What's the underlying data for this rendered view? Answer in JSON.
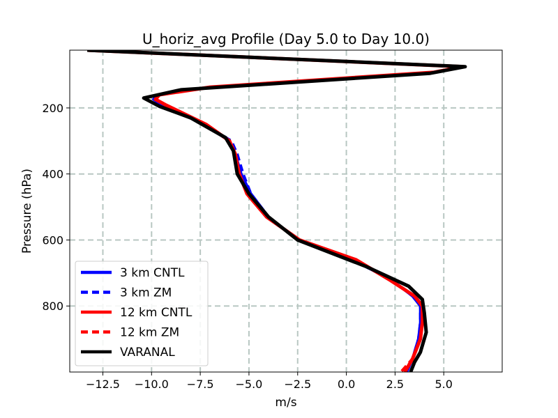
{
  "chart_data": {
    "type": "line",
    "title": "U_horiz_avg Profile (Day 5.0 to Day 10.0)",
    "xlabel": "m/s",
    "ylabel": "Pressure (hPa)",
    "xlim": [
      -14.2,
      8.0
    ],
    "ylim": [
      1000,
      25
    ],
    "y_inverted": true,
    "grid": true,
    "legend_position": "lower-left",
    "xticks": [
      -12.5,
      -10.0,
      -7.5,
      -5.0,
      -2.5,
      0.0,
      2.5,
      5.0
    ],
    "xtick_labels": [
      "−12.5",
      "−10.0",
      "−7.5",
      "−5.0",
      "−2.5",
      "0.0",
      "2.5",
      "5.0"
    ],
    "yticks": [
      200,
      400,
      600,
      800
    ],
    "ytick_labels": [
      "200",
      "400",
      "600",
      "800"
    ],
    "series": [
      {
        "name": "3 km CNTL",
        "color": "#0000ff",
        "dash": "solid",
        "points": [
          [
            -13.3,
            25
          ],
          [
            6.0,
            75
          ],
          [
            4.5,
            92
          ],
          [
            -7.0,
            137
          ],
          [
            -9.7,
            160
          ],
          [
            -9.9,
            174
          ],
          [
            -9.5,
            190
          ],
          [
            -7.3,
            250
          ],
          [
            -6.0,
            300
          ],
          [
            -5.7,
            340
          ],
          [
            -5.4,
            400
          ],
          [
            -4.9,
            460
          ],
          [
            -4.0,
            530
          ],
          [
            -2.5,
            600
          ],
          [
            0.3,
            660
          ],
          [
            2.3,
            720
          ],
          [
            3.4,
            770
          ],
          [
            3.8,
            800
          ],
          [
            3.8,
            850
          ],
          [
            3.7,
            900
          ],
          [
            3.4,
            960
          ],
          [
            3.1,
            1000
          ]
        ]
      },
      {
        "name": "3 km ZM",
        "color": "#0000ff",
        "dash": "dashed",
        "points": [
          [
            -13.3,
            25
          ],
          [
            6.0,
            75
          ],
          [
            4.5,
            92
          ],
          [
            -7.0,
            137
          ],
          [
            -9.7,
            160
          ],
          [
            -9.9,
            174
          ],
          [
            -9.5,
            190
          ],
          [
            -7.3,
            250
          ],
          [
            -5.9,
            300
          ],
          [
            -5.6,
            340
          ],
          [
            -5.3,
            400
          ],
          [
            -4.9,
            460
          ],
          [
            -4.0,
            530
          ],
          [
            -2.5,
            600
          ],
          [
            0.3,
            660
          ],
          [
            2.3,
            720
          ],
          [
            3.4,
            770
          ],
          [
            3.8,
            800
          ],
          [
            3.8,
            850
          ],
          [
            3.7,
            900
          ],
          [
            3.4,
            960
          ],
          [
            3.1,
            1000
          ]
        ]
      },
      {
        "name": "12 km CNTL",
        "color": "#ff0000",
        "dash": "solid",
        "points": [
          [
            -13.3,
            25
          ],
          [
            6.0,
            75
          ],
          [
            4.5,
            92
          ],
          [
            -7.0,
            137
          ],
          [
            -9.6,
            160
          ],
          [
            -9.8,
            174
          ],
          [
            -9.3,
            190
          ],
          [
            -7.2,
            250
          ],
          [
            -6.0,
            300
          ],
          [
            -5.7,
            340
          ],
          [
            -5.5,
            400
          ],
          [
            -5.1,
            460
          ],
          [
            -4.1,
            530
          ],
          [
            -2.4,
            600
          ],
          [
            0.5,
            660
          ],
          [
            2.2,
            720
          ],
          [
            3.5,
            770
          ],
          [
            3.9,
            800
          ],
          [
            3.9,
            850
          ],
          [
            3.8,
            900
          ],
          [
            3.4,
            960
          ],
          [
            3.0,
            1000
          ]
        ]
      },
      {
        "name": "12 km ZM",
        "color": "#ff0000",
        "dash": "dashed",
        "points": [
          [
            -13.3,
            25
          ],
          [
            6.0,
            75
          ],
          [
            4.5,
            92
          ],
          [
            -7.0,
            137
          ],
          [
            -9.6,
            160
          ],
          [
            -9.8,
            174
          ],
          [
            -9.3,
            190
          ],
          [
            -7.2,
            250
          ],
          [
            -6.0,
            300
          ],
          [
            -5.7,
            340
          ],
          [
            -5.5,
            400
          ],
          [
            -5.1,
            460
          ],
          [
            -4.1,
            530
          ],
          [
            -2.4,
            600
          ],
          [
            0.5,
            660
          ],
          [
            2.2,
            720
          ],
          [
            3.5,
            770
          ],
          [
            3.9,
            800
          ],
          [
            3.9,
            850
          ],
          [
            3.8,
            900
          ],
          [
            3.4,
            960
          ],
          [
            2.8,
            1000
          ]
        ]
      },
      {
        "name": "VARANAL",
        "color": "#000000",
        "dash": "solid",
        "points": [
          [
            -13.3,
            25
          ],
          [
            6.1,
            75
          ],
          [
            4.3,
            95
          ],
          [
            -8.5,
            145
          ],
          [
            -10.4,
            170
          ],
          [
            -9.6,
            195
          ],
          [
            -8.0,
            230
          ],
          [
            -6.2,
            290
          ],
          [
            -5.8,
            330
          ],
          [
            -5.6,
            400
          ],
          [
            -5.0,
            460
          ],
          [
            -4.0,
            530
          ],
          [
            -2.5,
            600
          ],
          [
            1.0,
            680
          ],
          [
            3.2,
            740
          ],
          [
            3.9,
            780
          ],
          [
            4.0,
            820
          ],
          [
            4.1,
            880
          ],
          [
            3.8,
            940
          ],
          [
            3.5,
            970
          ],
          [
            3.3,
            1000
          ]
        ]
      }
    ]
  }
}
